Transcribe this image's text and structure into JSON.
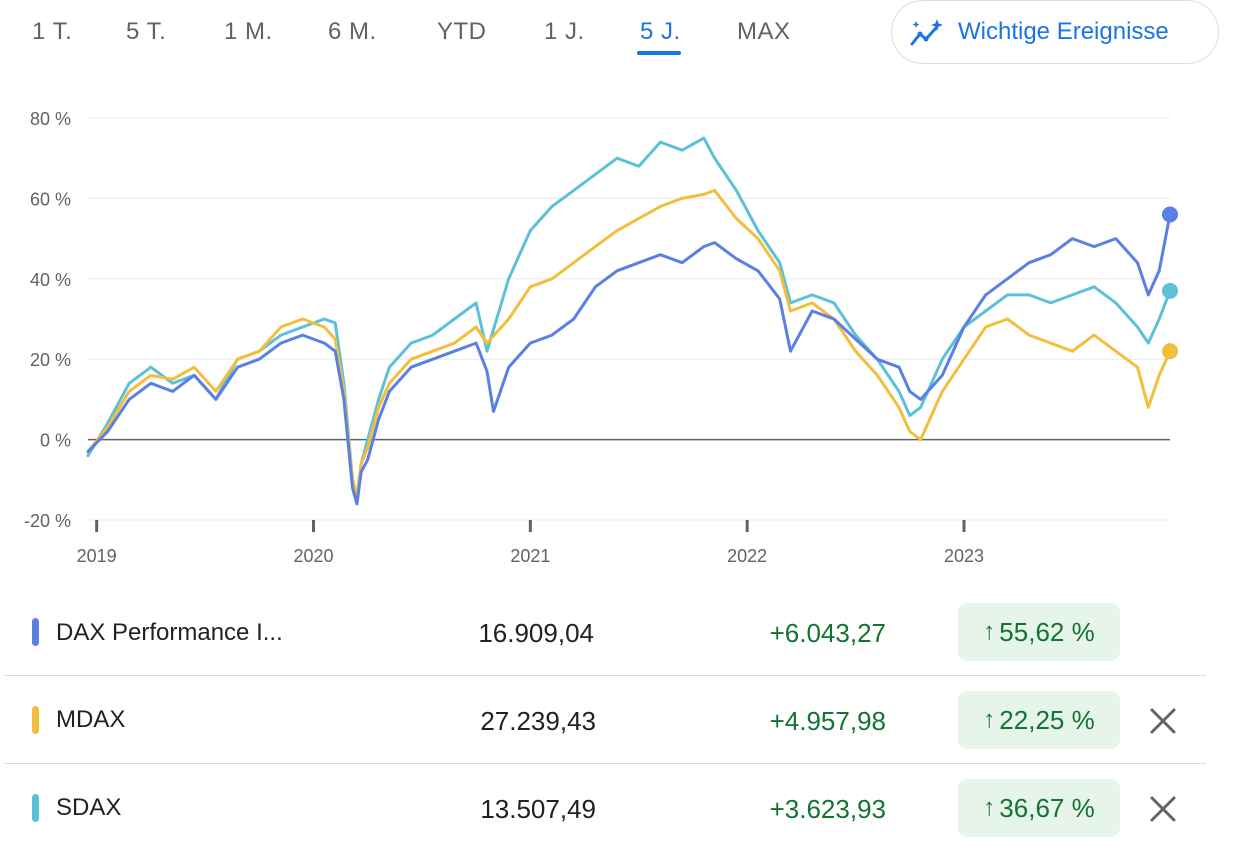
{
  "range_tabs": [
    {
      "label": "1 T.",
      "active": false
    },
    {
      "label": "5 T.",
      "active": false
    },
    {
      "label": "1 M.",
      "active": false
    },
    {
      "label": "6 M.",
      "active": false
    },
    {
      "label": "YTD",
      "active": false
    },
    {
      "label": "1 J.",
      "active": false
    },
    {
      "label": "5 J.",
      "active": true
    },
    {
      "label": "MAX",
      "active": false
    }
  ],
  "events_button": {
    "label": "Wichtige Ereignisse",
    "icon": "sparkle-trend-icon"
  },
  "colors": {
    "accent": "#1a73e8",
    "gain": "#137333",
    "gain_bg": "#e6f4ea"
  },
  "chart_data": {
    "type": "line",
    "y_ticks": [
      "80 %",
      "60 %",
      "40 %",
      "20 %",
      "0 %",
      "-20 %"
    ],
    "y_tick_values": [
      80,
      60,
      40,
      20,
      0,
      -20
    ],
    "ylim": [
      -20,
      80
    ],
    "x_ticks": [
      "2019",
      "2020",
      "2021",
      "2022",
      "2023"
    ],
    "x_tick_values": [
      2019.0,
      2020.0,
      2021.0,
      2022.0,
      2023.0
    ],
    "xlim": [
      2018.96,
      2023.95
    ],
    "grid": true,
    "baseline": 0,
    "series": [
      {
        "name": "DAX Performance I...",
        "color": "#5b7fe3",
        "x": [
          2018.96,
          2019.05,
          2019.15,
          2019.25,
          2019.35,
          2019.45,
          2019.55,
          2019.65,
          2019.75,
          2019.85,
          2019.95,
          2020.05,
          2020.1,
          2020.14,
          2020.18,
          2020.2,
          2020.22,
          2020.25,
          2020.3,
          2020.35,
          2020.45,
          2020.55,
          2020.65,
          2020.75,
          2020.8,
          2020.83,
          2020.9,
          2021.0,
          2021.1,
          2021.2,
          2021.3,
          2021.4,
          2021.5,
          2021.6,
          2021.7,
          2021.8,
          2021.85,
          2021.95,
          2022.05,
          2022.15,
          2022.2,
          2022.3,
          2022.4,
          2022.5,
          2022.6,
          2022.7,
          2022.75,
          2022.8,
          2022.9,
          2023.0,
          2023.1,
          2023.2,
          2023.3,
          2023.4,
          2023.5,
          2023.6,
          2023.7,
          2023.8,
          2023.85,
          2023.9,
          2023.95
        ],
        "y": [
          -3,
          2,
          10,
          14,
          12,
          16,
          10,
          18,
          20,
          24,
          26,
          24,
          22,
          10,
          -12,
          -16,
          -8,
          -5,
          5,
          12,
          18,
          20,
          22,
          24,
          17,
          7,
          18,
          24,
          26,
          30,
          38,
          42,
          44,
          46,
          44,
          48,
          49,
          45,
          42,
          35,
          22,
          32,
          30,
          25,
          20,
          18,
          12,
          10,
          16,
          28,
          36,
          40,
          44,
          46,
          50,
          48,
          50,
          44,
          36,
          42,
          56
        ]
      },
      {
        "name": "MDAX",
        "color": "#f2be3c",
        "x": [
          2018.96,
          2019.05,
          2019.15,
          2019.25,
          2019.35,
          2019.45,
          2019.55,
          2019.65,
          2019.75,
          2019.85,
          2019.95,
          2020.05,
          2020.1,
          2020.14,
          2020.18,
          2020.2,
          2020.22,
          2020.25,
          2020.3,
          2020.35,
          2020.45,
          2020.55,
          2020.65,
          2020.75,
          2020.8,
          2020.9,
          2021.0,
          2021.1,
          2021.2,
          2021.3,
          2021.4,
          2021.5,
          2021.6,
          2021.7,
          2021.8,
          2021.85,
          2021.95,
          2022.05,
          2022.15,
          2022.2,
          2022.3,
          2022.4,
          2022.5,
          2022.6,
          2022.7,
          2022.75,
          2022.8,
          2022.9,
          2023.0,
          2023.1,
          2023.2,
          2023.3,
          2023.4,
          2023.5,
          2023.6,
          2023.7,
          2023.8,
          2023.85,
          2023.9,
          2023.95
        ],
        "y": [
          -3,
          3,
          12,
          16,
          15,
          18,
          12,
          20,
          22,
          28,
          30,
          28,
          25,
          12,
          -10,
          -14,
          -6,
          -2,
          8,
          14,
          20,
          22,
          24,
          28,
          24,
          30,
          38,
          40,
          44,
          48,
          52,
          55,
          58,
          60,
          61,
          62,
          55,
          50,
          42,
          32,
          34,
          30,
          22,
          16,
          8,
          2,
          0,
          12,
          20,
          28,
          30,
          26,
          24,
          22,
          26,
          22,
          18,
          8,
          16,
          22
        ]
      },
      {
        "name": "SDAX",
        "color": "#5bc0d8",
        "x": [
          2018.96,
          2019.05,
          2019.15,
          2019.25,
          2019.35,
          2019.45,
          2019.55,
          2019.65,
          2019.75,
          2019.85,
          2019.95,
          2020.05,
          2020.1,
          2020.14,
          2020.18,
          2020.2,
          2020.22,
          2020.25,
          2020.3,
          2020.35,
          2020.45,
          2020.55,
          2020.65,
          2020.75,
          2020.8,
          2020.9,
          2021.0,
          2021.1,
          2021.2,
          2021.3,
          2021.4,
          2021.5,
          2021.6,
          2021.7,
          2021.8,
          2021.85,
          2021.95,
          2022.05,
          2022.15,
          2022.2,
          2022.3,
          2022.4,
          2022.5,
          2022.6,
          2022.7,
          2022.75,
          2022.8,
          2022.9,
          2023.0,
          2023.1,
          2023.2,
          2023.3,
          2023.4,
          2023.5,
          2023.6,
          2023.7,
          2023.8,
          2023.85,
          2023.9,
          2023.95
        ],
        "y": [
          -4,
          4,
          14,
          18,
          14,
          16,
          10,
          20,
          22,
          26,
          28,
          30,
          29,
          14,
          -10,
          -14,
          -6,
          0,
          10,
          18,
          24,
          26,
          30,
          34,
          22,
          40,
          52,
          58,
          62,
          66,
          70,
          68,
          74,
          72,
          75,
          70,
          62,
          52,
          44,
          34,
          36,
          34,
          26,
          20,
          12,
          6,
          8,
          20,
          28,
          32,
          36,
          36,
          34,
          36,
          38,
          34,
          28,
          24,
          30,
          37
        ]
      }
    ]
  },
  "rows": [
    {
      "name": "DAX Performance I...",
      "price": "16.909,04",
      "change": "+6.043,27",
      "pct": "55,62 %",
      "color": "#5b7fe3",
      "removable": false
    },
    {
      "name": "MDAX",
      "price": "27.239,43",
      "change": "+4.957,98",
      "pct": "22,25 %",
      "color": "#f2be3c",
      "removable": true
    },
    {
      "name": "SDAX",
      "price": "13.507,49",
      "change": "+3.623,93",
      "pct": "36,67 %",
      "color": "#5bc0d8",
      "removable": true
    }
  ]
}
